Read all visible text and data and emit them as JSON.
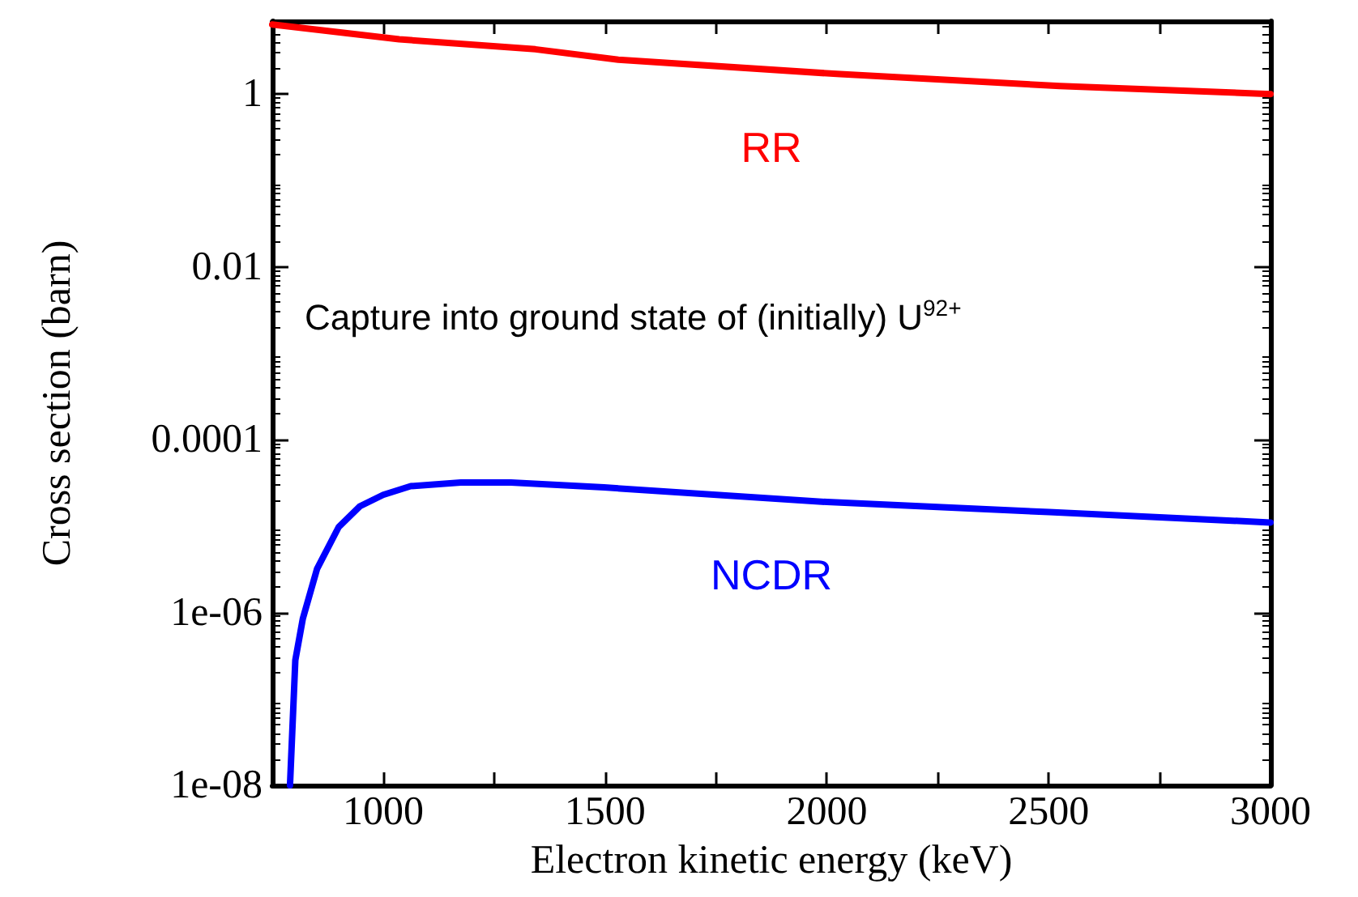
{
  "chart_data": {
    "type": "line",
    "xlabel": "Electron kinetic energy (keV)",
    "ylabel": "Cross section (barn)",
    "log": "y",
    "grid": false,
    "legend": false,
    "marker": "none",
    "line_style": "solid",
    "xlim": [
      750,
      3000
    ],
    "xticks": [
      {
        "value": 750,
        "label": null
      },
      1000,
      {
        "value": 1250,
        "label": null
      },
      1500,
      {
        "value": 1750,
        "label": null
      },
      2000,
      {
        "value": 2250,
        "label": null
      },
      2500,
      {
        "value": 2750,
        "label": null
      },
      3000
    ],
    "ylim": [
      1e-08,
      7
    ],
    "yticks": [
      {
        "value": 1e-08,
        "label": "1e-08"
      },
      {
        "value": 1e-06,
        "label": "1e-06"
      },
      {
        "value": 0.0001,
        "label": "0.0001"
      },
      {
        "value": 0.01,
        "label": "0.01"
      },
      {
        "value": 1,
        "label": "1"
      }
    ],
    "annotations": [
      "Capture into ground state of (initially) U$^{92+}$"
    ],
    "series": [
      {
        "name": "RR",
        "color": "#ff0000",
        "x": [
          750,
          1036,
          1343,
          1530,
          2030,
          2525,
          3000
        ],
        "values": [
          6.4,
          4.3,
          3.3,
          2.5,
          1.7,
          1.24,
          1
        ]
      },
      {
        "name": "NCDR",
        "color": "#0000ff",
        "x": [
          790,
          802,
          819,
          851,
          900,
          948,
          1000,
          1062,
          1175,
          1288,
          1498,
          2000,
          2501,
          3000
        ],
        "values": [
          1e-08,
          2.8e-07,
          8.5e-07,
          3.2e-06,
          9.8e-06,
          1.7e-05,
          2.3e-05,
          2.9e-05,
          3.2e-05,
          3.2e-05,
          2.8e-05,
          1.9e-05,
          1.45e-05,
          1.1e-05
        ]
      }
    ]
  }
}
